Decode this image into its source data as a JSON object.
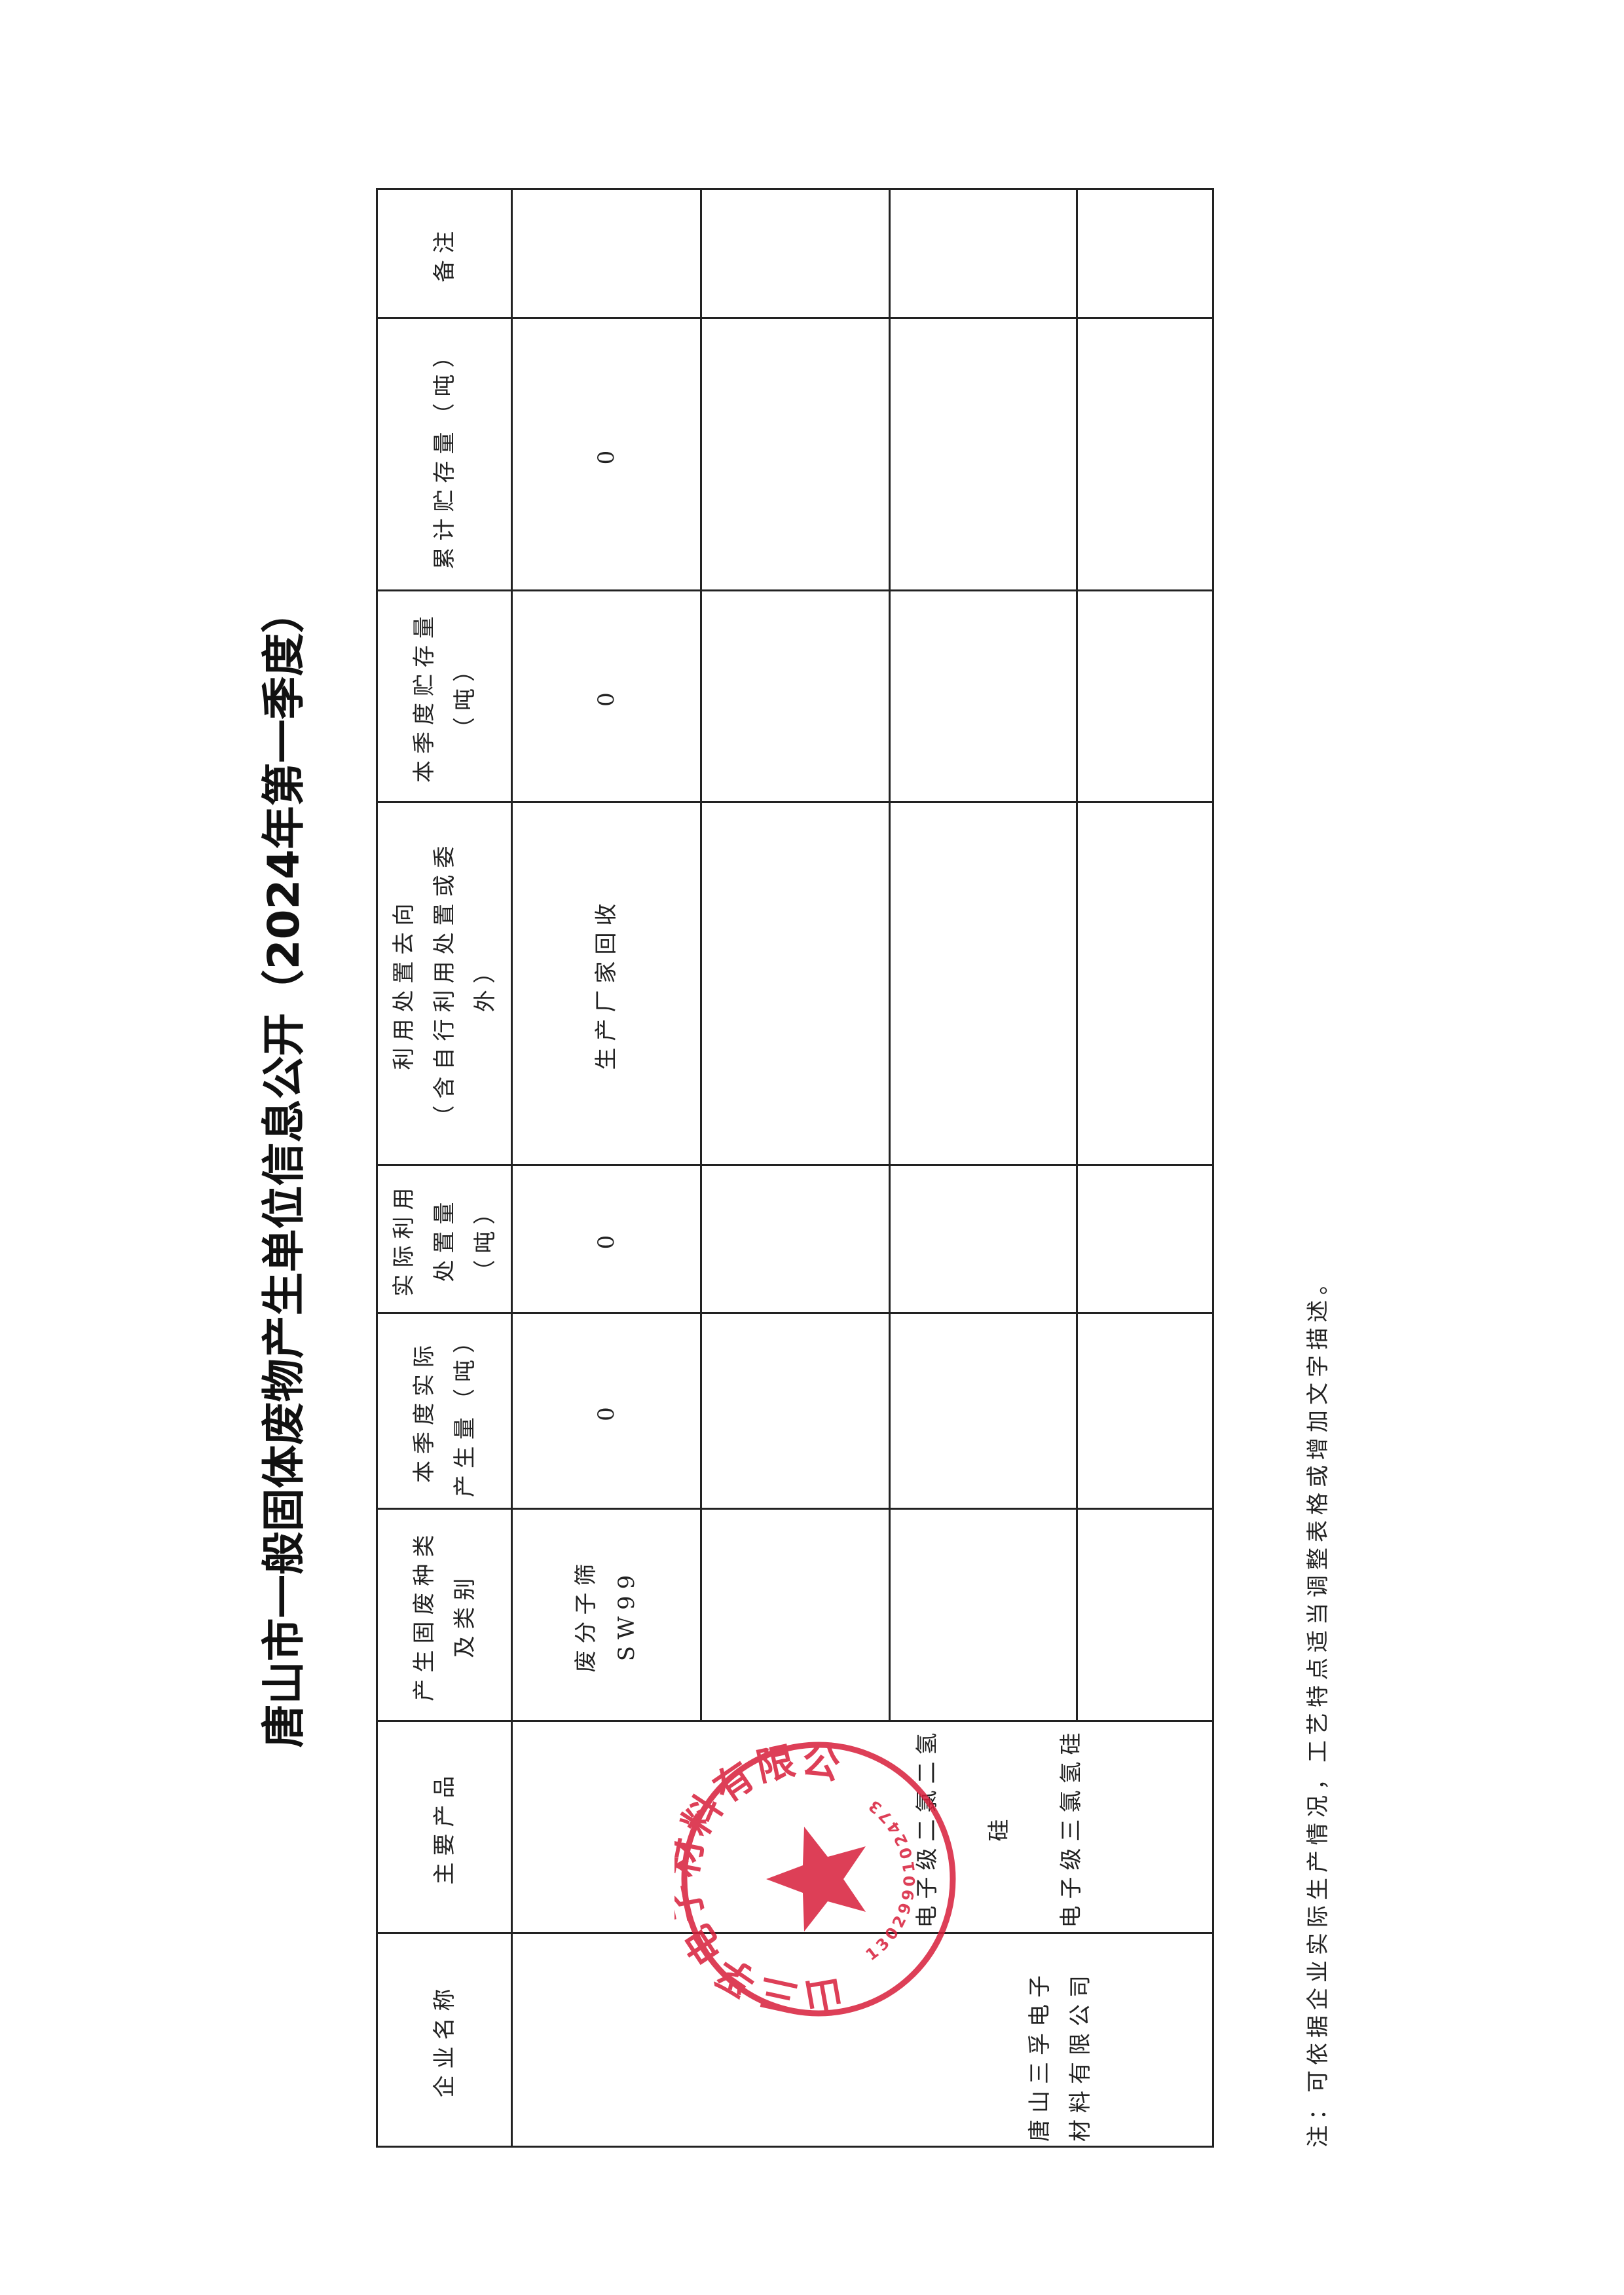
{
  "title": "唐山市一般固体废物产生单位信息公开（2024年第一季度）",
  "table": {
    "headers": [
      [
        "企业名称"
      ],
      [
        "主要产品"
      ],
      [
        "产生固废种类",
        "及类别"
      ],
      [
        "本季度实际",
        "产生量（吨）"
      ],
      [
        "实际利用",
        "处置量",
        "（吨）"
      ],
      [
        "利用处置去向",
        "（含自行利用处置或委",
        "外）"
      ],
      [
        "本季度贮存量",
        "（吨）"
      ],
      [
        "累计贮存量（吨）"
      ],
      [
        "备注"
      ]
    ],
    "company": [
      "唐山三孚电子",
      "材料有限公司"
    ],
    "products": [
      "电子级二氯二氢硅",
      "电子级三氯氢硅"
    ],
    "rows": [
      {
        "waste_type": [
          "废分子筛",
          "SW99"
        ],
        "generated": "0",
        "utilized": "0",
        "destination": "生产厂家回收",
        "quarter_storage": "0",
        "cumulative_storage": "0",
        "remark": ""
      },
      {
        "waste_type": [
          "",
          ""
        ],
        "generated": "",
        "utilized": "",
        "destination": "",
        "quarter_storage": "",
        "cumulative_storage": "",
        "remark": ""
      },
      {
        "waste_type": [
          "",
          ""
        ],
        "generated": "",
        "utilized": "",
        "destination": "",
        "quarter_storage": "",
        "cumulative_storage": "",
        "remark": ""
      },
      {
        "waste_type": [
          "",
          ""
        ],
        "generated": "",
        "utilized": "",
        "destination": "",
        "quarter_storage": "",
        "cumulative_storage": "",
        "remark": ""
      }
    ]
  },
  "stamp": {
    "text": "唐山三孚电子材料有限公司",
    "code": "1302990102473",
    "color": "#d81e3a"
  },
  "note": "注：可依据企业实际生产情况，工艺特点适当调整表格或增加文字描述。"
}
